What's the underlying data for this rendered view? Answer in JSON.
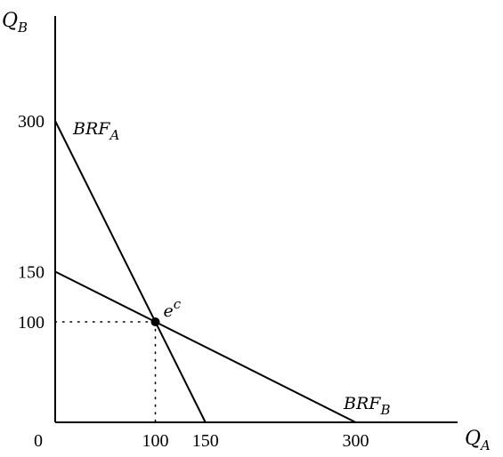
{
  "chart_data": {
    "type": "line",
    "title": "",
    "xlabel": {
      "base": "Q",
      "sub": "A"
    },
    "ylabel": {
      "base": "Q",
      "sub": "B"
    },
    "xlim": [
      0,
      400
    ],
    "ylim": [
      0,
      400
    ],
    "origin_label": "0",
    "x_ticks": [
      "100",
      "150",
      "300"
    ],
    "x_tick_values": [
      100,
      150,
      300
    ],
    "y_ticks": [
      "300",
      "150",
      "100"
    ],
    "y_tick_values": [
      300,
      150,
      100
    ],
    "series": [
      {
        "label_base": "BRF",
        "label_sub": "A",
        "points": [
          [
            0,
            300
          ],
          [
            150,
            0
          ]
        ]
      },
      {
        "label_base": "BRF",
        "label_sub": "B",
        "points": [
          [
            0,
            150
          ],
          [
            300,
            0
          ]
        ]
      }
    ],
    "equilibrium": {
      "label_base": "e",
      "label_sup": "c",
      "x": 100,
      "y": 100
    },
    "grid": false
  }
}
